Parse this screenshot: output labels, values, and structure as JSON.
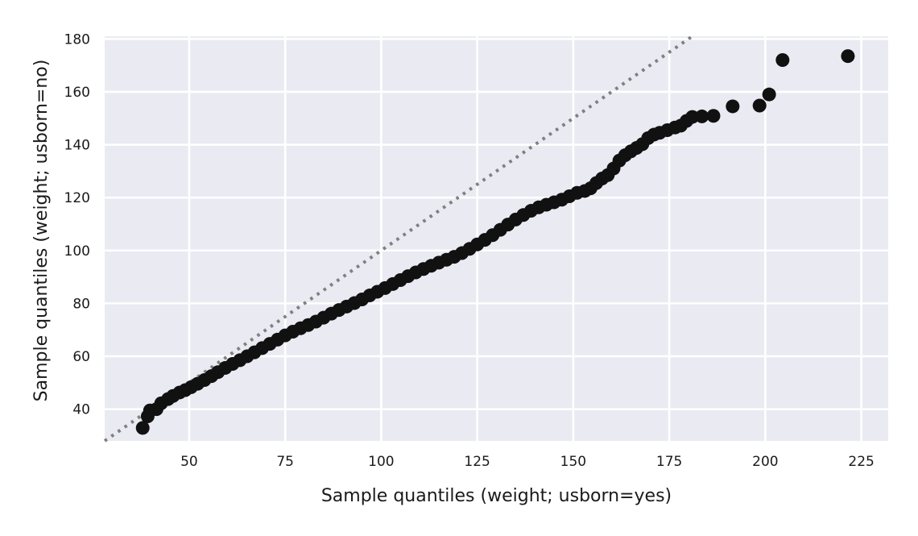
{
  "chart_data": {
    "type": "scatter",
    "title": "",
    "xlabel": "Sample quantiles (weight; usborn=yes)",
    "ylabel": "Sample quantiles (weight; usborn=no)",
    "xlim": [
      28,
      232
    ],
    "ylim": [
      28,
      181
    ],
    "xticks": [
      50,
      75,
      100,
      125,
      150,
      175,
      200,
      225
    ],
    "yticks": [
      40,
      60,
      80,
      100,
      120,
      140,
      160,
      180
    ],
    "grid": true,
    "reference_line": {
      "slope": 1,
      "intercept": 0,
      "style": "dotted",
      "color": "#808080"
    },
    "points": [
      [
        37.9,
        32.9
      ],
      [
        39.2,
        37.3
      ],
      [
        39.8,
        39.5
      ],
      [
        41.5,
        40.0
      ],
      [
        42.7,
        42.2
      ],
      [
        44.5,
        43.8
      ],
      [
        45.8,
        45.0
      ],
      [
        47.5,
        46.3
      ],
      [
        49.0,
        47.2
      ],
      [
        50.5,
        48.3
      ],
      [
        52.2,
        49.6
      ],
      [
        54.0,
        51.0
      ],
      [
        55.8,
        52.5
      ],
      [
        57.5,
        54.0
      ],
      [
        59.4,
        55.6
      ],
      [
        61.3,
        57.1
      ],
      [
        63.2,
        58.5
      ],
      [
        65.1,
        60.0
      ],
      [
        67.0,
        61.5
      ],
      [
        69.0,
        63.1
      ],
      [
        71.0,
        64.7
      ],
      [
        73.0,
        66.3
      ],
      [
        75.0,
        67.9
      ],
      [
        77.0,
        69.3
      ],
      [
        79.0,
        70.6
      ],
      [
        81.0,
        71.8
      ],
      [
        83.0,
        73.1
      ],
      [
        85.0,
        74.6
      ],
      [
        87.0,
        76.1
      ],
      [
        89.0,
        77.5
      ],
      [
        91.0,
        78.8
      ],
      [
        93.0,
        80.1
      ],
      [
        95.0,
        81.5
      ],
      [
        97.0,
        83.0
      ],
      [
        99.0,
        84.4
      ],
      [
        101.0,
        85.8
      ],
      [
        103.0,
        87.3
      ],
      [
        105.0,
        88.8
      ],
      [
        107.0,
        90.3
      ],
      [
        109.0,
        91.7
      ],
      [
        111.0,
        93.0
      ],
      [
        113.0,
        94.2
      ],
      [
        115.0,
        95.4
      ],
      [
        117.0,
        96.5
      ],
      [
        119.0,
        97.6
      ],
      [
        121.0,
        99.0
      ],
      [
        123.0,
        100.6
      ],
      [
        125.0,
        102.3
      ],
      [
        127.0,
        104.0
      ],
      [
        129.0,
        105.8
      ],
      [
        131.0,
        107.8
      ],
      [
        133.0,
        109.8
      ],
      [
        135.0,
        111.7
      ],
      [
        137.0,
        113.4
      ],
      [
        139.0,
        115.0
      ],
      [
        141.0,
        116.3
      ],
      [
        143.0,
        117.3
      ],
      [
        145.0,
        118.2
      ],
      [
        147.0,
        119.2
      ],
      [
        149.0,
        120.5
      ],
      [
        151.0,
        121.8
      ],
      [
        153.0,
        122.5
      ],
      [
        154.5,
        123.5
      ],
      [
        156.0,
        125.5
      ],
      [
        157.5,
        127.2
      ],
      [
        159.0,
        128.5
      ],
      [
        160.5,
        131.0
      ],
      [
        162.0,
        134.0
      ],
      [
        163.5,
        136.0
      ],
      [
        165.0,
        137.5
      ],
      [
        166.5,
        138.8
      ],
      [
        168.0,
        140.2
      ],
      [
        169.5,
        142.5
      ],
      [
        171.0,
        143.8
      ],
      [
        172.5,
        144.5
      ],
      [
        174.5,
        145.5
      ],
      [
        176.5,
        146.5
      ],
      [
        178.0,
        147.2
      ],
      [
        179.5,
        149.0
      ],
      [
        181.0,
        150.5
      ],
      [
        183.5,
        150.7
      ],
      [
        186.5,
        150.9
      ],
      [
        191.5,
        154.5
      ],
      [
        198.5,
        154.8
      ],
      [
        201.0,
        159.0
      ],
      [
        204.5,
        172.0
      ],
      [
        221.5,
        173.5
      ]
    ]
  }
}
